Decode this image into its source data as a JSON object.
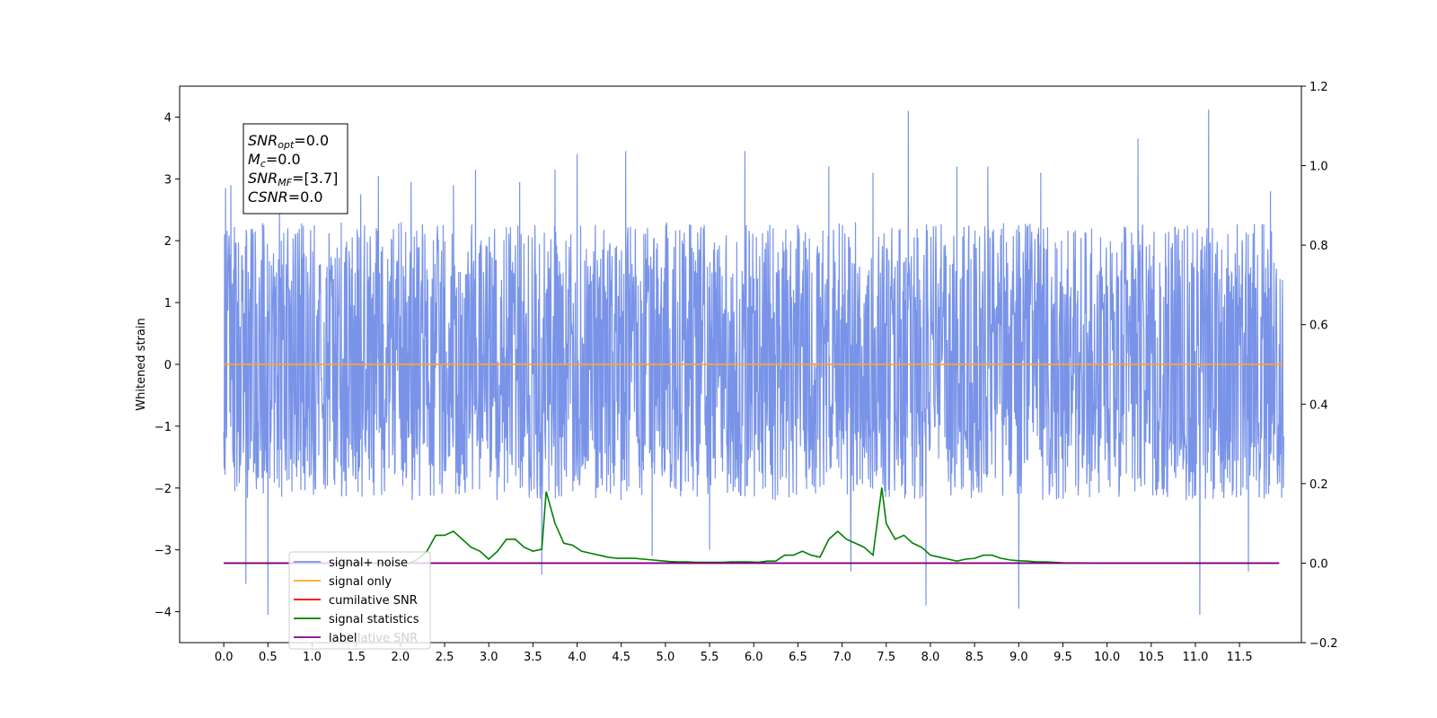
{
  "chart_data": {
    "type": "line",
    "title": "",
    "xlabel": "",
    "ylabel": "Whitened strain",
    "xlim": [
      -0.5,
      12.2
    ],
    "ylim": [
      -4.5,
      4.5
    ],
    "y2lim": [
      -0.2,
      1.2
    ],
    "x_ticks": [
      "0.0",
      "0.5",
      "1.0",
      "1.5",
      "2.0",
      "2.5",
      "3.0",
      "3.5",
      "4.0",
      "4.5",
      "5.0",
      "5.5",
      "6.0",
      "6.5",
      "7.0",
      "7.5",
      "8.0",
      "8.5",
      "9.0",
      "9.5",
      "10.0",
      "10.5",
      "11.0",
      "11.5"
    ],
    "y_ticks": [
      "4",
      "3",
      "2",
      "1",
      "0",
      "−1",
      "−2",
      "−3",
      "−4"
    ],
    "y2_ticks": [
      "1.2",
      "1.0",
      "0.8",
      "0.6",
      "0.4",
      "0.2",
      "0.0",
      "−0.2"
    ],
    "grid": false,
    "legend_position": "lower-left",
    "series": [
      {
        "name": "signal+ noise",
        "axis": "left",
        "color": "#7893e8",
        "kind": "noise",
        "x_range": [
          0.0,
          12.0
        ],
        "envelope": [
          -2.0,
          2.3
        ],
        "spikes": [
          [
            0.02,
            2.85
          ],
          [
            0.08,
            2.9
          ],
          [
            0.25,
            -3.55
          ],
          [
            0.5,
            -4.05
          ],
          [
            0.63,
            2.8
          ],
          [
            1.55,
            2.75
          ],
          [
            1.75,
            3.05
          ],
          [
            2.12,
            2.95
          ],
          [
            2.6,
            2.9
          ],
          [
            2.85,
            3.15
          ],
          [
            3.35,
            2.95
          ],
          [
            3.6,
            -3.4
          ],
          [
            3.75,
            3.15
          ],
          [
            4.0,
            3.4
          ],
          [
            4.55,
            3.45
          ],
          [
            4.85,
            -3.1
          ],
          [
            5.5,
            -3.0
          ],
          [
            5.9,
            3.45
          ],
          [
            6.85,
            3.2
          ],
          [
            7.1,
            -3.35
          ],
          [
            7.35,
            3.1
          ],
          [
            7.75,
            4.1
          ],
          [
            7.95,
            -3.9
          ],
          [
            8.3,
            3.2
          ],
          [
            8.65,
            3.2
          ],
          [
            9.0,
            -3.95
          ],
          [
            9.25,
            3.1
          ],
          [
            10.35,
            3.65
          ],
          [
            11.05,
            -4.05
          ],
          [
            11.15,
            4.12
          ],
          [
            11.6,
            -3.35
          ],
          [
            11.85,
            2.8
          ]
        ]
      },
      {
        "name": "signal only",
        "axis": "left",
        "color": "#ffa726",
        "kind": "flat",
        "x": [
          0.0,
          12.0
        ],
        "y": [
          0.0,
          0.0
        ]
      },
      {
        "name": "cumilative SNR",
        "axis": "right",
        "color": "#ff0000",
        "kind": "hidden",
        "x": [],
        "y": []
      },
      {
        "name": "signal statistics",
        "axis": "right",
        "color": "#008000",
        "kind": "line",
        "x": [
          0.0,
          1.0,
          2.0,
          2.1,
          2.2,
          2.3,
          2.4,
          2.5,
          2.6,
          2.7,
          2.8,
          2.9,
          3.0,
          3.1,
          3.2,
          3.3,
          3.4,
          3.5,
          3.6,
          3.65,
          3.75,
          3.85,
          3.95,
          4.05,
          4.15,
          4.25,
          4.35,
          4.45,
          4.55,
          4.65,
          4.75,
          4.85,
          4.95,
          5.05,
          5.15,
          5.25,
          5.35,
          5.45,
          5.55,
          5.65,
          5.75,
          5.85,
          5.95,
          6.05,
          6.15,
          6.25,
          6.35,
          6.45,
          6.55,
          6.65,
          6.75,
          6.85,
          6.95,
          7.05,
          7.15,
          7.25,
          7.35,
          7.45,
          7.5,
          7.55,
          7.6,
          7.7,
          7.8,
          7.9,
          8.0,
          8.1,
          8.2,
          8.3,
          8.4,
          8.5,
          8.6,
          8.7,
          8.8,
          8.9,
          9.0,
          9.1,
          9.2,
          9.3,
          9.5,
          10.0,
          11.0,
          11.9
        ],
        "y": [
          0.0,
          0.0,
          0.0,
          0.0,
          0.01,
          0.03,
          0.07,
          0.07,
          0.08,
          0.06,
          0.04,
          0.03,
          0.01,
          0.03,
          0.06,
          0.06,
          0.04,
          0.03,
          0.035,
          0.18,
          0.1,
          0.05,
          0.045,
          0.03,
          0.025,
          0.02,
          0.015,
          0.012,
          0.012,
          0.012,
          0.01,
          0.008,
          0.006,
          0.004,
          0.003,
          0.003,
          0.002,
          0.002,
          0.002,
          0.002,
          0.003,
          0.003,
          0.003,
          0.002,
          0.005,
          0.005,
          0.02,
          0.02,
          0.03,
          0.02,
          0.015,
          0.06,
          0.08,
          0.06,
          0.05,
          0.04,
          0.02,
          0.19,
          0.1,
          0.08,
          0.06,
          0.07,
          0.05,
          0.04,
          0.02,
          0.015,
          0.01,
          0.005,
          0.01,
          0.012,
          0.02,
          0.02,
          0.012,
          0.008,
          0.006,
          0.005,
          0.003,
          0.003,
          0.001,
          0.0,
          0.0,
          0.0
        ]
      },
      {
        "name": "label",
        "axis": "right",
        "color": "#800080",
        "kind": "flat",
        "x": [
          0.0,
          11.95
        ],
        "y": [
          0.0,
          0.0
        ]
      }
    ],
    "annotations": [
      {
        "label": "SNR",
        "sub": "opt",
        "value": "=0.0"
      },
      {
        "label": "M",
        "sub": "c",
        "value": "=0.0"
      },
      {
        "label": "SNR",
        "sub": "MF",
        "value": "=[3.7]"
      },
      {
        "label": "CSNR",
        "sub": "",
        "value": "=0.0"
      }
    ],
    "legend_partial_text": "lative SNR"
  }
}
